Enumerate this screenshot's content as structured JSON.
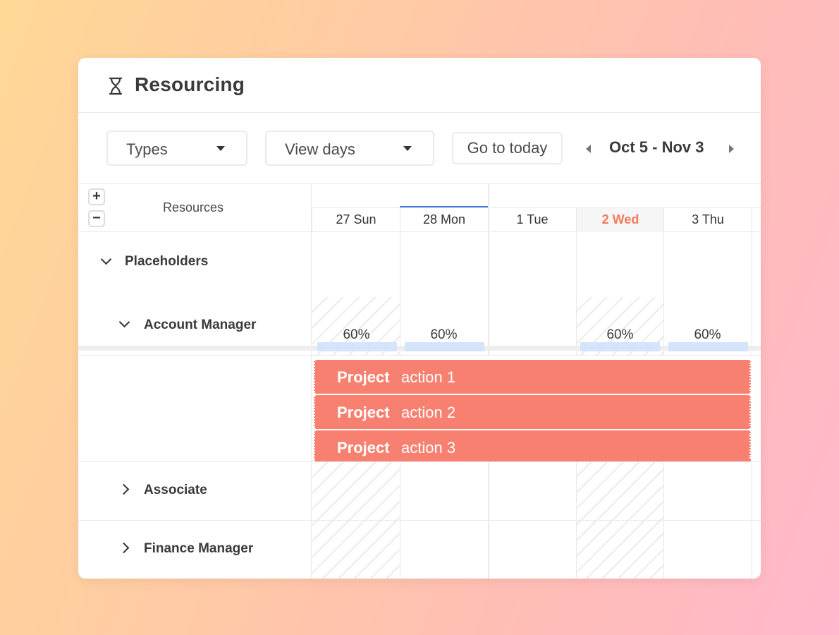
{
  "header": {
    "title": "Resourcing",
    "icon": "hourglass-icon"
  },
  "toolbar": {
    "types_label": "Types",
    "view_days_label": "View days",
    "today_label": "Go to today",
    "date_range": "Oct 5 - Nov 3"
  },
  "grid": {
    "resources_label": "Resources",
    "zoom_in": "+",
    "zoom_out": "−",
    "days": [
      "27 Sun",
      "28 Mon",
      "1 Tue",
      "2 Wed",
      "3 Thu"
    ],
    "today_index": 3,
    "groups": {
      "placeholders": "Placeholders",
      "account_manager": "Account Manager",
      "associate": "Associate",
      "finance_manager": "Finance Manager"
    },
    "utilization": [
      "60%",
      "60%",
      "60%",
      "60%"
    ],
    "tasks": [
      {
        "strong": "Project",
        "rest": "action 1"
      },
      {
        "strong": "Project",
        "rest": "action 2"
      },
      {
        "strong": "Project",
        "rest": "action 3"
      }
    ]
  },
  "colors": {
    "accent": "#3b7dd8",
    "task": "#f88070",
    "today": "#f27b5d",
    "utilization": "#d3e4fb"
  }
}
